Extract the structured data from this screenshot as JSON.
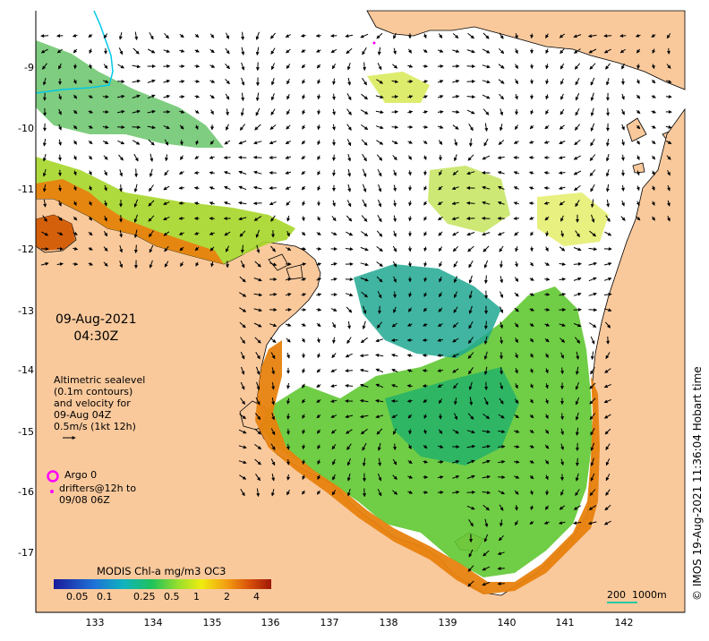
{
  "annotation": {
    "date": "09-Aug-2021",
    "time": "04:30Z",
    "altimetry_lines": [
      "Altimetric sealevel",
      "(0.1m contours)",
      "and velocity for",
      "09-Aug 04Z",
      "0.5m/s (1kt 12h)"
    ],
    "argo_label": "Argo 0",
    "drifter_lines": [
      "drifters@12h to",
      "09/08 06Z"
    ]
  },
  "colorbar": {
    "title": "MODIS Chl-a mg/m3 OC3",
    "ticks": [
      "0.05",
      "0.1",
      "0.25",
      "0.5",
      "1",
      "2",
      "4"
    ]
  },
  "scale_bar": {
    "label": "200  1000m"
  },
  "credit": "© IMOS 19-Aug-2021 11:36:04 Hobart time",
  "axes": {
    "latitude_ticks": [
      "-9",
      "-10",
      "-11",
      "-12",
      "-13",
      "-14",
      "-15",
      "-16",
      "-17"
    ],
    "longitude_ticks": [
      "133",
      "134",
      "135",
      "136",
      "137",
      "138",
      "139",
      "140",
      "141",
      "142"
    ]
  },
  "colors": {
    "land": "#f9c99c",
    "ocean": "#ffffff",
    "argo_marker": "#ff00ff",
    "scale_bar": "#28c8a0"
  }
}
